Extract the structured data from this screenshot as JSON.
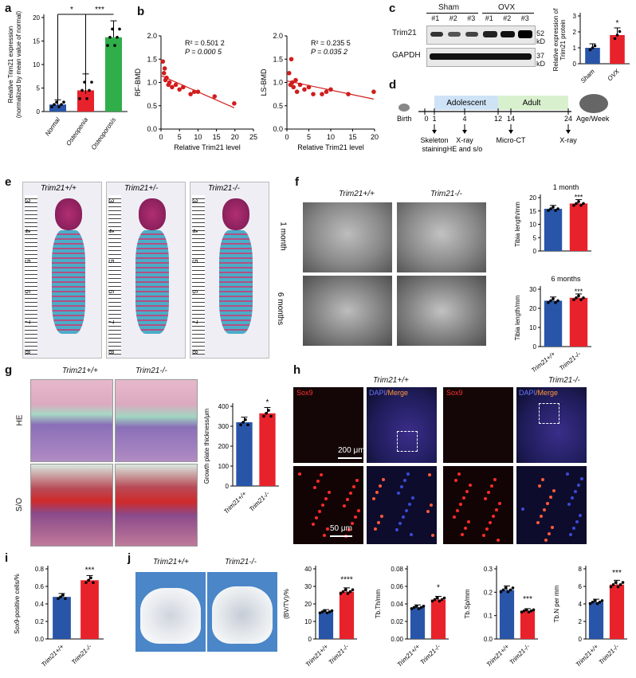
{
  "labels": {
    "a": "a",
    "b": "b",
    "c": "c",
    "d": "d",
    "e": "e",
    "f": "f",
    "g": "g",
    "h": "h",
    "i": "i",
    "j": "j"
  },
  "colors": {
    "blue": "#2855a8",
    "red": "#e8222b",
    "green": "#2fae4a",
    "darkred": "#d11d1d",
    "stain_pink": "#c85a8c",
    "xray_gray": "#7a7a7a",
    "fluor_blue": "#2a2f90"
  },
  "panel_a": {
    "ylabel": "Relative Trim21 expression",
    "ylabel2": "(normalized by mean value of normal)",
    "ticks": [
      "0",
      "5",
      "10",
      "15",
      "20"
    ],
    "sig1": "*",
    "sig2": "***",
    "chart_data": {
      "type": "bar",
      "categories": [
        "Normal",
        "Osteopenia",
        "Osteoporosis"
      ],
      "values": [
        1.5,
        4.5,
        15.8
      ],
      "errors": [
        1.0,
        3.5,
        3.5
      ],
      "ylim": [
        0,
        20
      ]
    }
  },
  "panel_b1": {
    "ylabel": "RF-BMD",
    "xlabel": "Relative Trim21 level",
    "r2": "R² = 0.501 2",
    "p": "P = 0.000 5",
    "xticks": [
      "0",
      "5",
      "10",
      "15",
      "20",
      "25"
    ],
    "yticks": [
      "0.0",
      "0.5",
      "1.0",
      "1.5",
      "2.0"
    ],
    "chart_data": {
      "type": "scatter",
      "x": [
        0.5,
        0.8,
        1.0,
        1.2,
        1.5,
        2.0,
        2.3,
        3.0,
        4.0,
        5.0,
        6.0,
        8.0,
        9.0,
        10.0,
        14.5,
        19.8
      ],
      "y": [
        1.45,
        1.2,
        1.3,
        1.05,
        1.1,
        0.95,
        1.0,
        0.9,
        0.95,
        0.85,
        0.9,
        0.75,
        0.8,
        0.8,
        0.7,
        0.55
      ],
      "xlim": [
        0,
        25
      ],
      "ylim": [
        0,
        2
      ]
    }
  },
  "panel_b2": {
    "ylabel": "LS-BMD",
    "xlabel": "Relative Trim21 level",
    "r2": "R² = 0.235 5",
    "p": "P = 0.035 2",
    "xticks": [
      "0",
      "5",
      "10",
      "15",
      "20"
    ],
    "yticks": [
      "0.0",
      "0.5",
      "1.0",
      "1.5",
      "2.0"
    ],
    "chart_data": {
      "type": "scatter",
      "x": [
        0.5,
        0.8,
        1.0,
        1.2,
        1.5,
        2.0,
        2.3,
        3.0,
        4.0,
        5.0,
        6.0,
        8.0,
        9.0,
        10.0,
        14.0,
        19.8
      ],
      "y": [
        1.2,
        0.95,
        1.5,
        1.0,
        0.9,
        1.05,
        0.8,
        0.95,
        0.85,
        0.9,
        0.75,
        0.75,
        0.8,
        0.85,
        0.75,
        0.8
      ],
      "xlim": [
        0,
        20
      ],
      "ylim": [
        0,
        2
      ]
    }
  },
  "panel_c": {
    "sham": "Sham",
    "ovx": "OVX",
    "lanes": [
      "#1",
      "#2",
      "#3",
      "#1",
      "#2",
      "#3"
    ],
    "trim21": "Trim21",
    "gapdh": "GAPDH",
    "kd52": "52 kD",
    "kd37": "37 kD",
    "ylabel": "Relative expression of",
    "ylabel2": "Trim21 protein",
    "sig": "*",
    "ticks": [
      "0",
      "1",
      "2",
      "3"
    ],
    "chart_data": {
      "type": "bar",
      "categories": [
        "Sham",
        "OVX"
      ],
      "values": [
        1.0,
        1.8
      ],
      "errors": [
        0.25,
        0.45
      ],
      "ylim": [
        0,
        3
      ]
    }
  },
  "panel_d": {
    "stages": [
      "Adolescent",
      "Adult"
    ],
    "birth": "Birth",
    "axis_end": "Age/Week",
    "ticks": [
      "0",
      "1",
      "4",
      "12",
      "14",
      "24"
    ],
    "events": [
      "Skeleton",
      "staining",
      "X-ray",
      "HE and s/o",
      "Micro-CT",
      "X-ray"
    ]
  },
  "panel_e": {
    "genotypes": [
      "Trim21+/+",
      "Trim21+/-",
      "Trim21-/-"
    ],
    "ruler": [
      "3",
      "4",
      "5",
      "6",
      "7",
      "8"
    ]
  },
  "panel_f": {
    "genotypes": [
      "Trim21+/+",
      "Trim21-/-"
    ],
    "rows": [
      "1 month",
      "6 months"
    ],
    "chart1": {
      "title": "1 month",
      "ylabel": "Tibia length/mm",
      "ticks": [
        "0",
        "5",
        "10",
        "15",
        "20"
      ],
      "sig": "***",
      "chart_data": {
        "type": "bar",
        "categories": [
          "Trim21+/+",
          "Trim21-/-"
        ],
        "values": [
          15.8,
          17.8
        ],
        "ylim": [
          0,
          20
        ]
      }
    },
    "chart2": {
      "title": "6 months",
      "ylabel": "Tibia length/mm",
      "ticks": [
        "0",
        "10",
        "20",
        "30"
      ],
      "sig": "***",
      "chart_data": {
        "type": "bar",
        "categories": [
          "Trim21+/+",
          "Trim21-/-"
        ],
        "values": [
          24.0,
          25.5
        ],
        "ylim": [
          0,
          30
        ]
      }
    },
    "xcats": [
      "Trim21+/+",
      "Trim21-/-"
    ]
  },
  "panel_g": {
    "genotypes": [
      "Trim21+/+",
      "Trim21-/-"
    ],
    "rows": [
      "HE",
      "S/O"
    ],
    "ylabel": "Growth plate thickness/μm",
    "ticks": [
      "0",
      "100",
      "200",
      "300",
      "400"
    ],
    "sig": "*",
    "chart_data": {
      "type": "bar",
      "categories": [
        "Trim21+/+",
        "Trim21-/-"
      ],
      "values": [
        320,
        365
      ],
      "ylim": [
        0,
        400
      ]
    }
  },
  "panel_h": {
    "genotypes": [
      "Trim21+/+",
      "Trim21-/-"
    ],
    "sox9": "Sox9",
    "dapi": "DAPI",
    "merge": "/Merge",
    "scale1": "200 μm",
    "scale2": "50 μm"
  },
  "panel_i": {
    "ylabel": "Sox9-positive cells/%",
    "ticks": [
      "0.0",
      "0.2",
      "0.4",
      "0.6",
      "0.8"
    ],
    "sig": "***",
    "chart_data": {
      "type": "bar",
      "categories": [
        "Trim21+/+",
        "Trim21-/-"
      ],
      "values": [
        0.48,
        0.67
      ],
      "ylim": [
        0,
        0.8
      ]
    }
  },
  "panel_j": {
    "genotypes": [
      "Trim21+/+",
      "Trim21-/-"
    ],
    "charts": [
      {
        "ylabel": "(BV/TV)/%",
        "ticks": [
          "0",
          "10",
          "20",
          "30",
          "40"
        ],
        "sig": "****",
        "chart_data": {
          "type": "bar",
          "categories": [
            "Trim21+/+",
            "Trim21-/-"
          ],
          "values": [
            15.5,
            27.0
          ],
          "ylim": [
            0,
            40
          ]
        }
      },
      {
        "ylabel": "Tb.Th/mm",
        "ticks": [
          "0.00",
          "0.02",
          "0.04",
          "0.06",
          "0.08"
        ],
        "sig": "*",
        "chart_data": {
          "type": "bar",
          "categories": [
            "Trim21+/+",
            "Trim21-/-"
          ],
          "values": [
            0.036,
            0.045
          ],
          "ylim": [
            0,
            0.08
          ]
        }
      },
      {
        "ylabel": "Tb.Sp/mm",
        "ticks": [
          "0.0",
          "0.1",
          "0.2",
          "0.3"
        ],
        "sig": "***",
        "chart_data": {
          "type": "bar",
          "categories": [
            "Trim21+/+",
            "Trim21-/-"
          ],
          "values": [
            0.21,
            0.12
          ],
          "ylim": [
            0,
            0.3
          ]
        }
      },
      {
        "ylabel": "Tb.N per mm",
        "ticks": [
          "0",
          "2",
          "4",
          "6",
          "8"
        ],
        "sig": "***",
        "chart_data": {
          "type": "bar",
          "categories": [
            "Trim21+/+",
            "Trim21-/-"
          ],
          "values": [
            4.2,
            6.2
          ],
          "ylim": [
            0,
            8
          ]
        }
      }
    ],
    "xcats": [
      "Trim21+/+",
      "Trim21-/-"
    ]
  }
}
